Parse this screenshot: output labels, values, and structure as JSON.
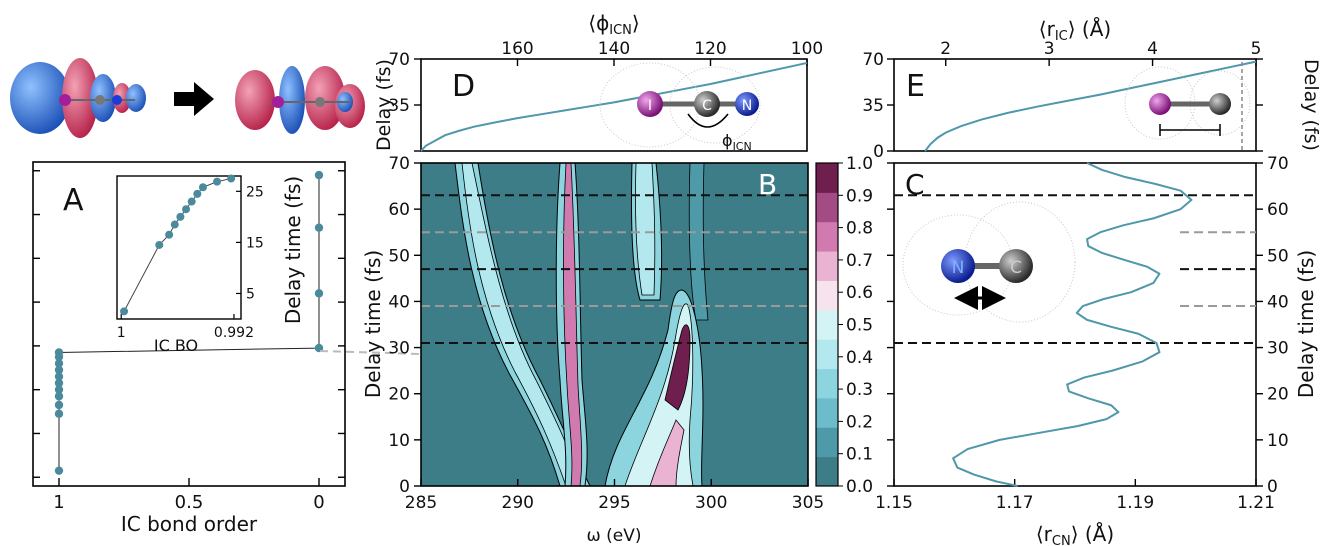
{
  "colors": {
    "teal": "#4a8a9c",
    "curve": "#4f97aa",
    "bg_dark": "#3d7d88",
    "light_teal": "#8cd5df",
    "pale": "#d3f3f5",
    "pink": "#d17ab0",
    "deep": "#6e1f4e",
    "dashed_black": "#111111",
    "dashed_gray": "#9a9a9a",
    "iodine": "#a21f9c",
    "carbon": "#555555",
    "nitrogen": "#1c3bd6",
    "orb_red": "#d84064",
    "orb_blue": "#2c6fd8"
  },
  "labels": {
    "A": "A",
    "B": "B",
    "C": "C",
    "D": "D",
    "E": "E",
    "phi_icn_label": "ϕ",
    "phi_icn_sub": "ICN",
    "atom_I": "I",
    "atom_C": "C",
    "atom_N": "N"
  },
  "chart_data": [
    {
      "id": "A",
      "type": "line",
      "xlabel": "IC bond order",
      "ylabel": "Delay time (fs)",
      "xlim": [
        1.1,
        -0.1
      ],
      "ylim": [
        -2,
        72
      ],
      "xticks": [
        1,
        0.5,
        0
      ],
      "xtick_labels": [
        "1",
        "0.5",
        "0"
      ],
      "yticks": [
        0,
        10,
        20,
        30,
        40,
        50,
        60,
        70
      ],
      "ytick_labels": [
        "",
        "",
        "",
        "",
        "",
        "",
        "",
        ""
      ],
      "x": [
        1,
        1,
        1,
        1,
        1,
        1,
        1,
        1,
        1,
        1,
        1,
        0,
        0,
        0,
        0
      ],
      "y": [
        1.5,
        14.5,
        16.5,
        18.5,
        20,
        21.5,
        23,
        24.5,
        26,
        27.5,
        28.5,
        29.5,
        42,
        57,
        69
      ],
      "inset": {
        "xlabel": "IC BO",
        "ylabel": "",
        "xlim": [
          1.0003,
          0.9915
        ],
        "ylim": [
          0,
          28
        ],
        "xticks": [
          1,
          0.992
        ],
        "xtick_labels": [
          "1",
          "0.992"
        ],
        "yticks": [
          5,
          15,
          25
        ],
        "ytick_labels": [
          "5",
          "15",
          "25"
        ],
        "x": [
          0.9998,
          0.9973,
          0.9966,
          0.9962,
          0.9958,
          0.9954,
          0.995,
          0.9946,
          0.9942,
          0.9932,
          0.9922
        ],
        "y": [
          1.5,
          14.5,
          16.5,
          18.5,
          20,
          21.5,
          23,
          24.5,
          25.8,
          26.9,
          27.5
        ]
      }
    },
    {
      "id": "B",
      "type": "heatmap",
      "xlabel": "ω (eV)",
      "ylabel": "Delay time (fs)",
      "xlim": [
        285,
        305
      ],
      "ylim": [
        0,
        70
      ],
      "xticks": [
        285,
        290,
        295,
        300,
        305
      ],
      "yticks": [
        0,
        10,
        20,
        30,
        40,
        50,
        60,
        70
      ],
      "colorbar": {
        "min": 0,
        "max": 1,
        "ticks": [
          "0.0",
          "0.1",
          "0.2",
          "0.3",
          "0.4",
          "0.5",
          "0.6",
          "0.7",
          "0.8",
          "0.9",
          "1.0"
        ],
        "colors": [
          "#3d7d88",
          "#4e9aa8",
          "#6cbccb",
          "#8cd5df",
          "#b2e8ee",
          "#d3f3f5",
          "#f7e3ee",
          "#eab3d2",
          "#d17ab0",
          "#a44b86",
          "#6e1f4e"
        ]
      },
      "hlines_black": [
        31,
        47,
        63
      ],
      "hlines_gray": [
        39,
        55
      ]
    },
    {
      "id": "C",
      "type": "line",
      "xlabel": "⟨r",
      "xlabel_sub": "CN",
      "xlabel_tail": "⟩ (Å)",
      "ylabel": "Delay time (fs)",
      "xlim": [
        1.15,
        1.21
      ],
      "ylim": [
        0,
        70
      ],
      "xticks": [
        1.15,
        1.17,
        1.19,
        1.21
      ],
      "xtick_labels": [
        "1.15",
        "1.17",
        "1.19",
        "1.21"
      ],
      "yticks": [
        0,
        10,
        20,
        30,
        40,
        50,
        60,
        70
      ],
      "x": [
        1.1705,
        1.1669,
        1.1632,
        1.1605,
        1.1598,
        1.1622,
        1.1675,
        1.174,
        1.1805,
        1.1852,
        1.1872,
        1.186,
        1.1822,
        1.179,
        1.1787,
        1.1815,
        1.1862,
        1.1912,
        1.194,
        1.1935,
        1.1905,
        1.186,
        1.182,
        1.1803,
        1.1813,
        1.1847,
        1.1893,
        1.193,
        1.194,
        1.192,
        1.1882,
        1.1845,
        1.1822,
        1.182,
        1.1842,
        1.188,
        1.193,
        1.1975,
        1.1993,
        1.1975,
        1.1932,
        1.1882,
        1.1845,
        1.182
      ],
      "y": [
        0,
        1,
        2.5,
        4,
        6,
        8,
        10,
        11.5,
        13,
        14.5,
        16,
        17.5,
        19,
        20.5,
        22,
        23.5,
        25,
        27,
        29,
        31,
        33,
        34.5,
        36,
        37.5,
        39,
        40.5,
        42,
        44,
        46,
        47.5,
        49,
        50.5,
        52,
        53.5,
        55,
        56.5,
        58,
        60,
        62,
        64,
        65.5,
        67,
        68.5,
        70
      ],
      "hlines_black": [
        31,
        47,
        63
      ],
      "hlines_gray": [
        39,
        55
      ]
    },
    {
      "id": "D",
      "type": "line",
      "xlabel": "⟨ϕ",
      "xlabel_sub": "ICN",
      "xlabel_tail": "⟩",
      "ylabel": "Delay (fs)",
      "xlim": [
        180,
        100
      ],
      "ylim": [
        0,
        70
      ],
      "xticks": [
        160,
        140,
        120,
        100
      ],
      "xtick_labels": [
        "160",
        "140",
        "120",
        "100"
      ],
      "yticks": [
        0,
        35,
        70
      ],
      "ytick_labels": [
        "",
        "35",
        "70"
      ],
      "x": [
        180,
        179,
        177,
        175,
        172,
        169,
        165,
        160,
        155,
        150,
        145,
        140,
        135,
        130,
        125,
        120,
        115,
        110,
        105,
        100
      ],
      "y": [
        0,
        4,
        8,
        12,
        15.5,
        18.5,
        21.5,
        25,
        28,
        31,
        34,
        37,
        40.5,
        44,
        47.5,
        51,
        55,
        59,
        63,
        67
      ]
    },
    {
      "id": "E",
      "type": "line",
      "xlabel": "⟨r",
      "xlabel_sub": "IC",
      "xlabel_tail": "⟩ (Å)",
      "ylabel": "Delay (fs)",
      "xlim": [
        1.5,
        5
      ],
      "ylim": [
        0,
        70
      ],
      "xticks": [
        2,
        3,
        4,
        5
      ],
      "xtick_labels": [
        "2",
        "3",
        "4",
        "5"
      ],
      "yticks": [
        0,
        35,
        70
      ],
      "ytick_labels": [
        "0",
        "35",
        "70"
      ],
      "x": [
        1.8,
        1.85,
        1.92,
        2.0,
        2.15,
        2.35,
        2.6,
        2.9,
        3.2,
        3.5,
        3.8,
        4.1,
        4.4,
        4.7,
        5.0
      ],
      "y": [
        0,
        5,
        10,
        14,
        19,
        24,
        29,
        34,
        38.5,
        43,
        48,
        53,
        58,
        63,
        68
      ]
    }
  ]
}
